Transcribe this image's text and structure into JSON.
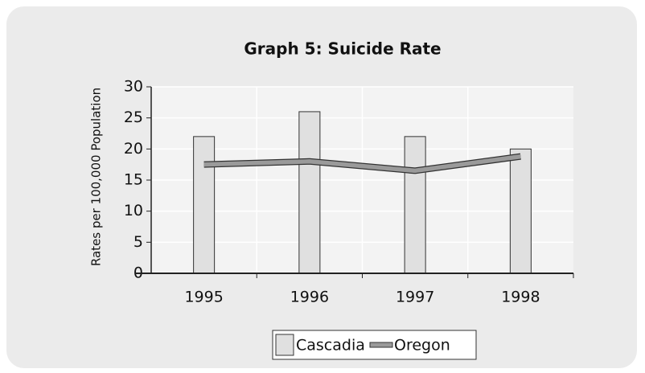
{
  "chart_data": {
    "type": "bar_line",
    "title": "Graph 5: Suicide Rate",
    "y_label": "Rates per 100,000 Population",
    "categories": [
      "1995",
      "1996",
      "1997",
      "1998"
    ],
    "series": [
      {
        "name": "Cascadia",
        "type": "bar",
        "color": "#e0e0e0",
        "values": [
          22,
          26,
          22,
          20
        ]
      },
      {
        "name": "Oregon",
        "type": "line",
        "color": "#9a9a9a",
        "values": [
          17.5,
          18,
          16.5,
          18.8
        ]
      }
    ],
    "ylim": [
      0,
      30
    ],
    "yticks": [
      0,
      5,
      10,
      15,
      20,
      25,
      30
    ],
    "grid": true
  }
}
